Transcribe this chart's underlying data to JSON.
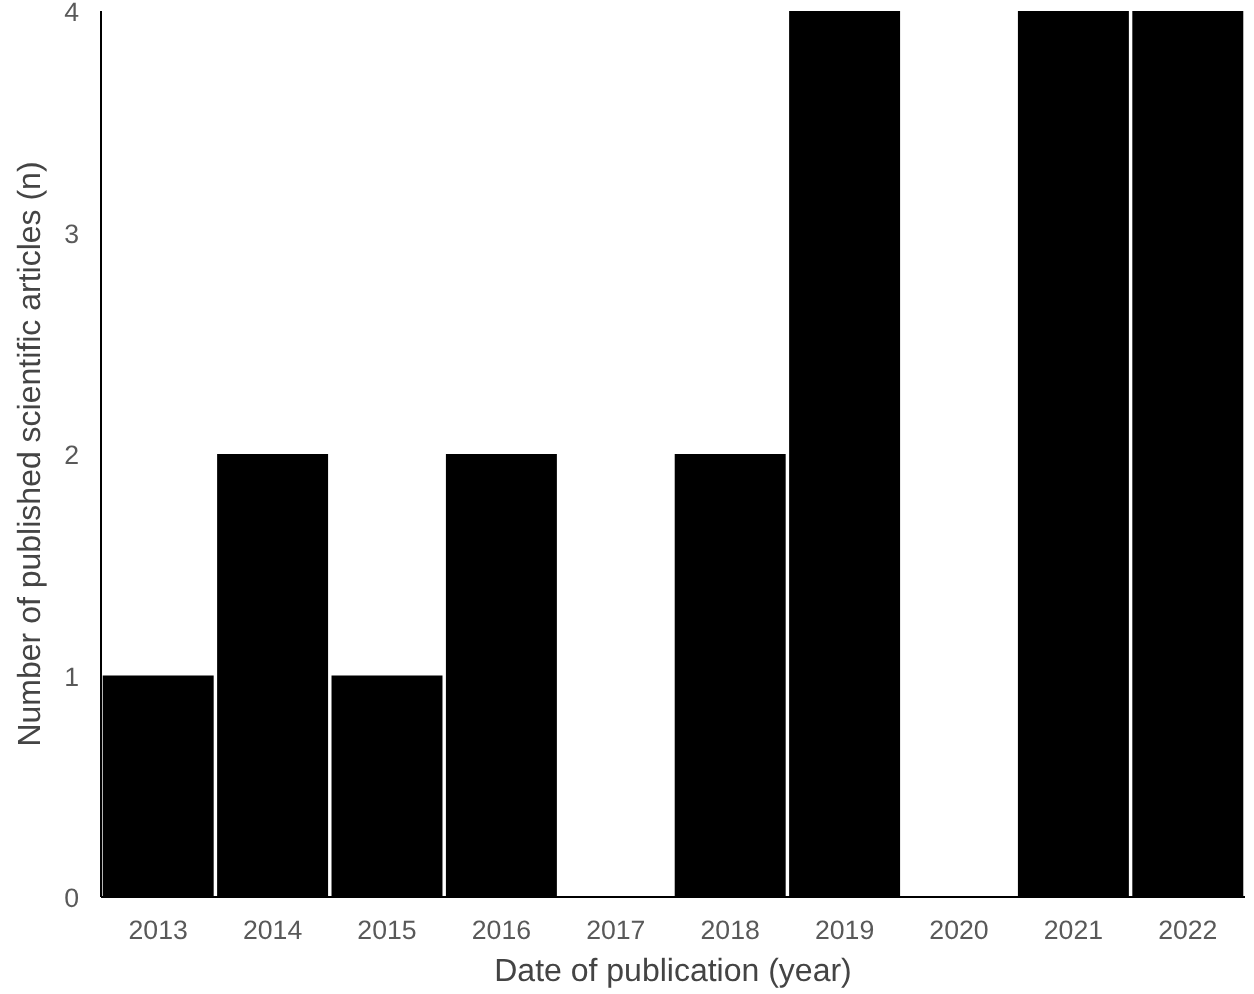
{
  "chart_data": {
    "type": "bar",
    "xlabel": "Date of publication (year)",
    "ylabel": "Number of published scientific articles (n)",
    "categories": [
      "2013",
      "2014",
      "2015",
      "2016",
      "2017",
      "2018",
      "2019",
      "2020",
      "2021",
      "2022"
    ],
    "values": [
      1,
      2,
      1,
      2,
      0,
      2,
      4,
      0,
      4,
      4
    ],
    "color": "#000000",
    "ylim": [
      0,
      4
    ],
    "yticks": [
      0,
      1,
      2,
      3,
      4
    ],
    "grid": false
  }
}
